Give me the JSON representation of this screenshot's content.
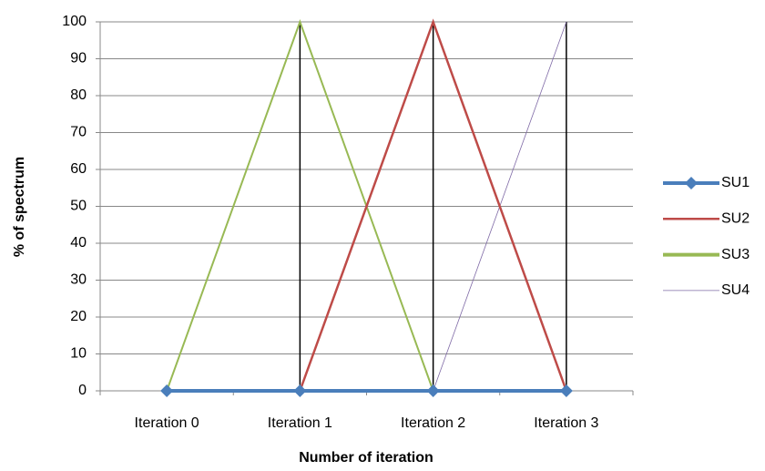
{
  "chart_data": {
    "type": "line",
    "categories": [
      "Iteration 0",
      "Iteration 1",
      "Iteration 2",
      "Iteration 3"
    ],
    "series": [
      {
        "name": "SU1",
        "color": "#4a7ebb",
        "line_width": 4,
        "marker": "diamond",
        "values": [
          0,
          0,
          0,
          0
        ]
      },
      {
        "name": "SU2",
        "color": "#be4b48",
        "line_width": 2.5,
        "values": [
          0,
          0,
          100,
          0
        ]
      },
      {
        "name": "SU3",
        "color": "#98b954",
        "line_width": 2,
        "legend_width": 4,
        "values": [
          0,
          100,
          0,
          0
        ]
      },
      {
        "name": "SU4",
        "color": "#7f6aa6",
        "line_width": 0.8,
        "values": [
          0,
          0,
          0,
          100
        ]
      }
    ],
    "ylim": [
      0,
      100
    ],
    "yticks": [
      0,
      10,
      20,
      30,
      40,
      50,
      60,
      70,
      80,
      90,
      100
    ],
    "grid": true,
    "high_low_lines": true,
    "legend": "right",
    "xlabel": "Number of iteration",
    "ylabel": "% of spectrum"
  }
}
